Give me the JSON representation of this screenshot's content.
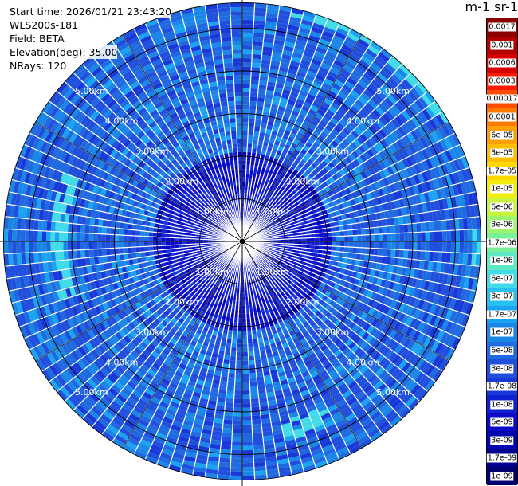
{
  "header": {
    "start_time": "Start time: 2026/01/21 23:43:20",
    "instrument": "WLS200s-181",
    "field": "Field: BETA",
    "elevation": "Elevation(deg): 35.00",
    "nrays": "NRays: 120"
  },
  "colorbar": {
    "title": "m-1 sr-1",
    "ticks": [
      "0.0017",
      "0.001",
      "0.0006",
      "0.0003",
      "0.00017",
      "0.0001",
      "6e-05",
      "3e-05",
      "1.7e-05",
      "1e-05",
      "6e-06",
      "3e-06",
      "1.7e-06",
      "1e-06",
      "6e-07",
      "3e-07",
      "1.7e-07",
      "1e-07",
      "6e-08",
      "3e-08",
      "1.7e-08",
      "1e-08",
      "6e-09",
      "3e-09",
      "1.7e-09",
      "1e-09"
    ],
    "colors": [
      "#8b0000",
      "#b30000",
      "#d60000",
      "#ff1a00",
      "#ff4d00",
      "#ff7a00",
      "#ff9f00",
      "#ffbe00",
      "#ffd800",
      "#f2ee10",
      "#c8f540",
      "#9ef56e",
      "#78f09a",
      "#5ee8c4",
      "#40dbe8",
      "#26c0f2",
      "#1aa3f0",
      "#1a86e8",
      "#1f6ae0",
      "#1f4fdc",
      "#1838d8",
      "#1020d0",
      "#0a0ac8",
      "#0000b0",
      "#000090",
      "#00006e"
    ]
  },
  "chart_data": {
    "type": "heatmap",
    "projection": "polar-ppi",
    "field": "BETA",
    "units": "m-1 sr-1",
    "elevation_deg": 35.0,
    "n_rays": 120,
    "range_rings_km": [
      1,
      2,
      3,
      4,
      5
    ],
    "ring_labels": [
      "1.00km",
      "2.00km",
      "3.00km",
      "4.00km",
      "5.00km"
    ],
    "max_range_km": 5.6,
    "gate_spacing_km": 0.05,
    "color_scale": "log",
    "value_range": [
      1e-09,
      0.0017
    ],
    "typical_value": 1.7e-08,
    "azimuth_lines_deg": [
      0,
      30,
      60,
      90,
      120,
      150,
      180,
      210,
      240,
      270,
      300,
      330
    ],
    "grid": true
  }
}
